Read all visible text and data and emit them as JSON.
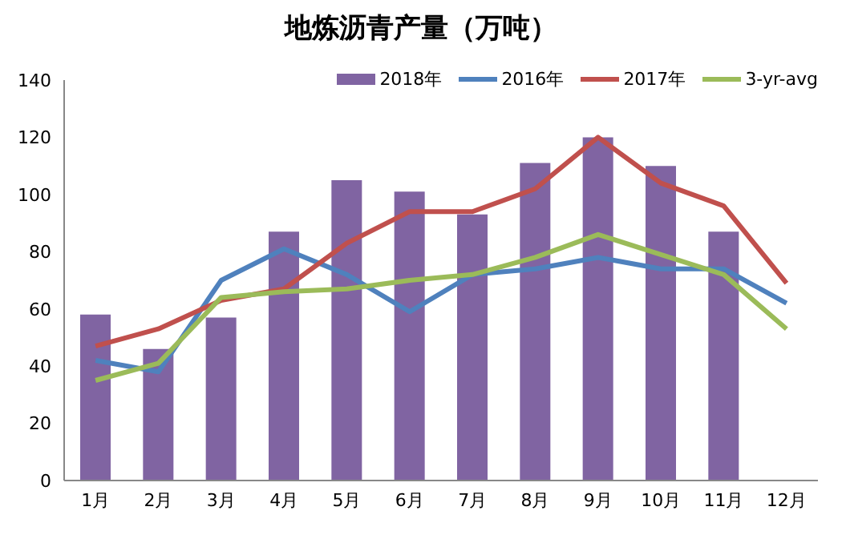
{
  "chart_data": {
    "type": "bar",
    "title": "地炼沥青产量（万吨）",
    "categories": [
      "1月",
      "2月",
      "3月",
      "4月",
      "5月",
      "6月",
      "7月",
      "8月",
      "9月",
      "10月",
      "11月",
      "12月"
    ],
    "series": [
      {
        "name": "2018年",
        "color": "#8064a2",
        "values": [
          58,
          46,
          57,
          87,
          105,
          101,
          93,
          111,
          120,
          110,
          87,
          null
        ]
      },
      {
        "name": "2016年",
        "type": "line",
        "color": "#4f81bd",
        "values": [
          42,
          38,
          70,
          81,
          72,
          59,
          72,
          74,
          78,
          74,
          74,
          62
        ]
      },
      {
        "name": "2017年",
        "type": "line",
        "color": "#c0504d",
        "values": [
          47,
          53,
          63,
          67,
          83,
          94,
          94,
          102,
          120,
          104,
          96,
          69
        ]
      },
      {
        "name": "3-yr-avg",
        "type": "line",
        "color": "#9bbb59",
        "values": [
          35,
          41,
          64,
          66,
          67,
          70,
          72,
          78,
          86,
          79,
          72,
          53
        ]
      }
    ],
    "ylim": [
      0,
      140
    ],
    "yticks": [
      0,
      20,
      40,
      60,
      80,
      100,
      120,
      140
    ],
    "grid": false,
    "legend": "top right",
    "marker": "none"
  }
}
